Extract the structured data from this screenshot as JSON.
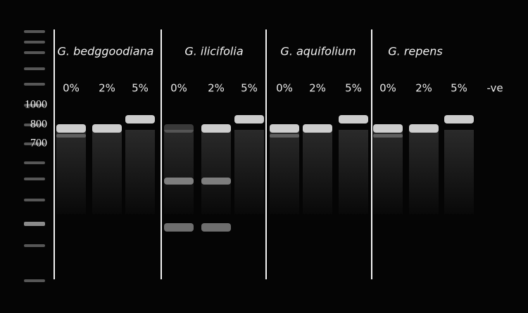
{
  "groups": [
    {
      "name": "G. bedggoodiana",
      "lanes": [
        "0%",
        "2%",
        "5%"
      ]
    },
    {
      "name": "G. ilicifolia",
      "lanes": [
        "0%",
        "2%",
        "5%"
      ]
    },
    {
      "name": "G. aquifolium",
      "lanes": [
        "0%",
        "2%",
        "5%"
      ]
    },
    {
      "name": "G. repens",
      "lanes": [
        "0%",
        "2%",
        "5%"
      ]
    }
  ],
  "negative": "-ve",
  "markers": [
    "1000",
    "800",
    "700"
  ]
}
